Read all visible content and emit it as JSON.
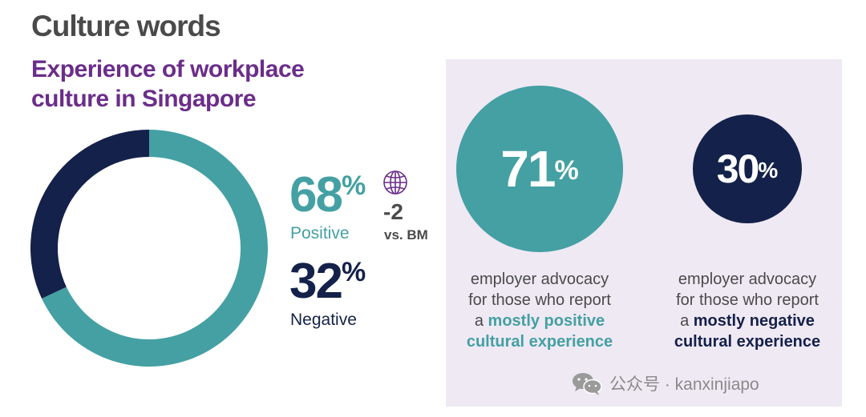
{
  "header": {
    "title": "Culture words",
    "subtitle_line1": "Experience of workplace",
    "subtitle_line2": "culture in Singapore"
  },
  "chart_data": [
    {
      "type": "pie",
      "variant": "donut",
      "categories": [
        "Positive",
        "Negative"
      ],
      "values": [
        68,
        32
      ],
      "colors": [
        "#44a0a3",
        "#14214a"
      ],
      "unit": "%"
    }
  ],
  "stats": {
    "positive": {
      "value": "68",
      "unit": "%",
      "label": "Positive"
    },
    "negative": {
      "value": "32",
      "unit": "%",
      "label": "Negative"
    },
    "benchmark": {
      "icon": "globe-icon",
      "delta": "-2",
      "label": "vs. BM"
    }
  },
  "panel": {
    "positive": {
      "value": "71",
      "unit": "%",
      "line1": "employer advocacy",
      "line2": "for those who report",
      "line3_prefix": "a ",
      "line3_highlight": "mostly positive",
      "line4_highlight": "cultural experience"
    },
    "negative": {
      "value": "30",
      "unit": "%",
      "line1": "employer advocacy",
      "line2": "for those who report",
      "line3_prefix": "a ",
      "line3_highlight": "mostly negative",
      "line4_highlight": "cultural experience"
    }
  },
  "watermark": {
    "icon": "wechat-icon",
    "text": "公众号 · kanxinjiapo"
  },
  "colors": {
    "teal": "#44a0a3",
    "navy": "#14214a",
    "purple": "#6b2d8a",
    "panel_bg": "#efe9f4"
  }
}
